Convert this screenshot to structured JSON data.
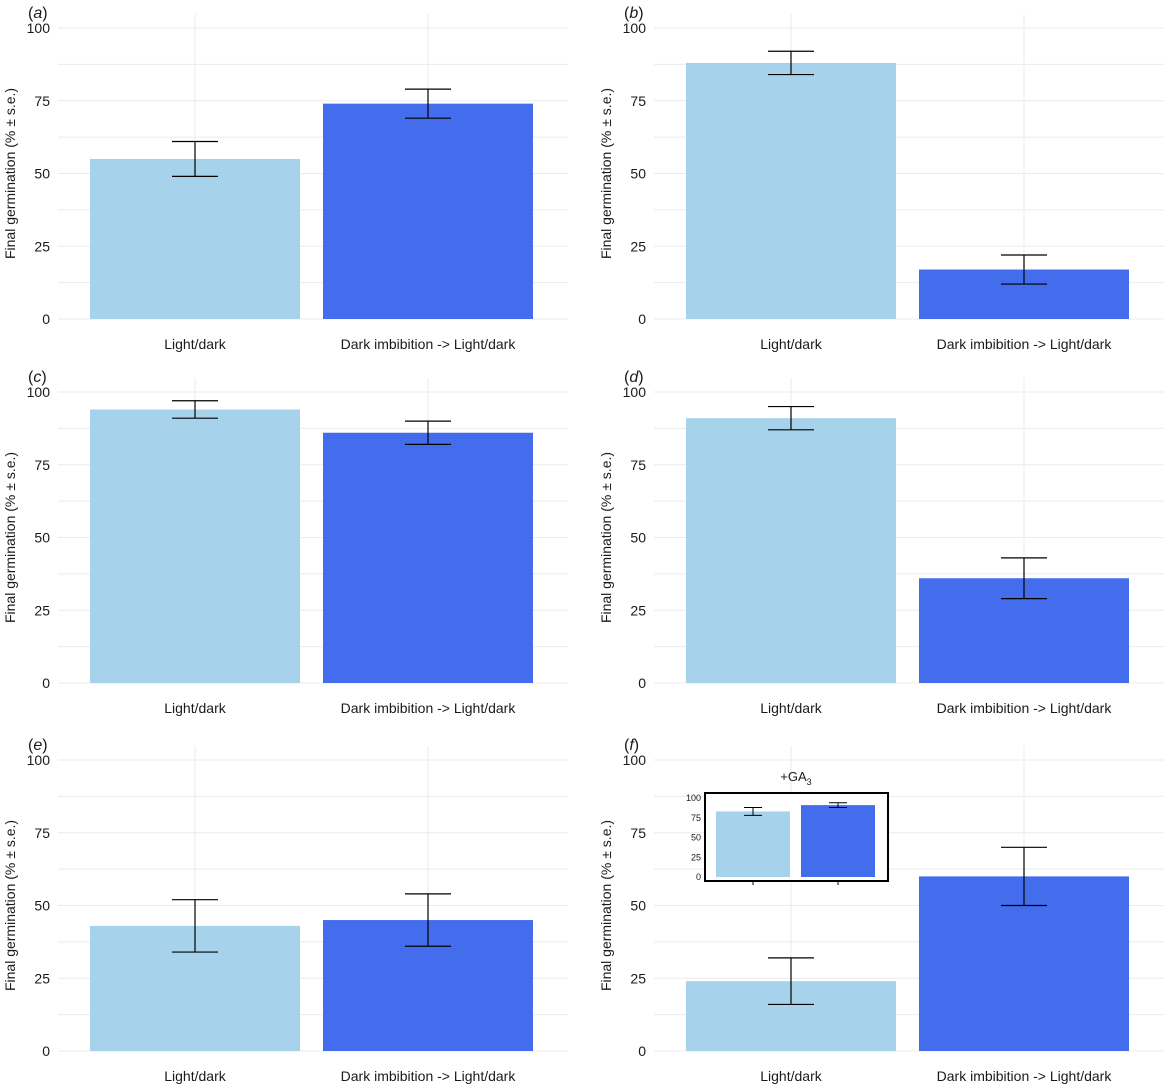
{
  "colors": {
    "light_bar": "#a6d3eb",
    "dark_bar": "#446ded",
    "grid": "#ebebeb",
    "error_bar": "#000000"
  },
  "chart_data": [
    {
      "panel_label": "a",
      "type": "bar",
      "ylabel": "Final germination (% ± s.e.)",
      "ylim": [
        0,
        100
      ],
      "yticks": [
        "0",
        "25",
        "50",
        "75",
        "100"
      ],
      "categories": [
        "Light/dark",
        "Dark imbibition -> Light/dark"
      ],
      "values": [
        55,
        74
      ],
      "errors": [
        6,
        5
      ],
      "grid": true
    },
    {
      "panel_label": "b",
      "type": "bar",
      "ylabel": "Final germination (% ± s.e.)",
      "ylim": [
        0,
        100
      ],
      "yticks": [
        "0",
        "25",
        "50",
        "75",
        "100"
      ],
      "categories": [
        "Light/dark",
        "Dark imbibition -> Light/dark"
      ],
      "values": [
        88,
        17
      ],
      "errors": [
        4,
        5
      ],
      "grid": true
    },
    {
      "panel_label": "c",
      "type": "bar",
      "ylabel": "Final germination (% ± s.e.)",
      "ylim": [
        0,
        100
      ],
      "yticks": [
        "0",
        "25",
        "50",
        "75",
        "100"
      ],
      "categories": [
        "Light/dark",
        "Dark imbibition -> Light/dark"
      ],
      "values": [
        94,
        86
      ],
      "errors": [
        3,
        4
      ],
      "grid": true
    },
    {
      "panel_label": "d",
      "type": "bar",
      "ylabel": "Final germination (% ± s.e.)",
      "ylim": [
        0,
        100
      ],
      "yticks": [
        "0",
        "25",
        "50",
        "75",
        "100"
      ],
      "categories": [
        "Light/dark",
        "Dark imbibition -> Light/dark"
      ],
      "values": [
        91,
        36
      ],
      "errors": [
        4,
        7
      ],
      "grid": true
    },
    {
      "panel_label": "e",
      "type": "bar",
      "ylabel": "Final germination (% ± s.e.)",
      "ylim": [
        0,
        100
      ],
      "yticks": [
        "0",
        "25",
        "50",
        "75",
        "100"
      ],
      "categories": [
        "Light/dark",
        "Dark imbibition -> Light/dark"
      ],
      "values": [
        43,
        45
      ],
      "errors": [
        9,
        9
      ],
      "grid": true
    },
    {
      "panel_label": "f",
      "type": "bar",
      "ylabel": "Final germination (% ± s.e.)",
      "ylim": [
        0,
        100
      ],
      "yticks": [
        "0",
        "25",
        "50",
        "75",
        "100"
      ],
      "categories": [
        "Light/dark",
        "Dark imbibition -> Light/dark"
      ],
      "values": [
        24,
        60
      ],
      "errors": [
        8,
        10
      ],
      "grid": true,
      "inset": {
        "title_main": "+GA",
        "title_sub": "3",
        "type": "bar",
        "ylim": [
          0,
          100
        ],
        "yticks": [
          "0",
          "25",
          "50",
          "75",
          "100"
        ],
        "values": [
          83,
          91
        ],
        "errors": [
          5,
          3
        ]
      }
    }
  ]
}
